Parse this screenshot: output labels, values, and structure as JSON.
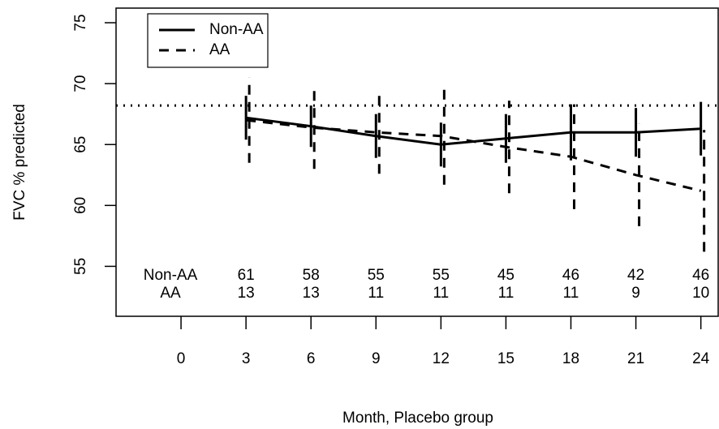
{
  "chart_data": {
    "type": "line",
    "y_label": "FVC % predicted",
    "x_label": "Month, Placebo group",
    "x": [
      3,
      6,
      9,
      12,
      15,
      18,
      21,
      24
    ],
    "series": [
      {
        "name": "Non-AA",
        "color": "#000000",
        "linestyle": "solid",
        "values": [
          67.2,
          66.5,
          65.7,
          65.0,
          65.5,
          66.0,
          66.0,
          66.3
        ],
        "errors": [
          1.8,
          1.7,
          1.8,
          1.8,
          2.0,
          2.3,
          2.0,
          2.2
        ]
      },
      {
        "name": "AA",
        "color": "#000000",
        "linestyle": "dashed",
        "values": [
          67.0,
          66.4,
          66.0,
          65.7,
          64.8,
          64.0,
          62.5,
          61.2
        ],
        "errors": [
          3.5,
          3.4,
          3.4,
          4.0,
          3.8,
          4.3,
          4.2,
          5.0
        ]
      }
    ],
    "xlim": [
      -3,
      24.8
    ],
    "ylim": [
      50.9,
      76.2
    ],
    "xticks": [
      0,
      3,
      6,
      9,
      12,
      15,
      18,
      21,
      24
    ],
    "yticks": [
      55,
      60,
      65,
      70,
      75
    ],
    "hline": 68.2,
    "legend": "top-left",
    "counts": {
      "labels": [
        "Non-AA",
        "AA"
      ],
      "rows": [
        [
          61,
          58,
          55,
          55,
          45,
          46,
          42,
          46
        ],
        [
          13,
          13,
          11,
          11,
          11,
          11,
          9,
          10
        ]
      ]
    }
  }
}
